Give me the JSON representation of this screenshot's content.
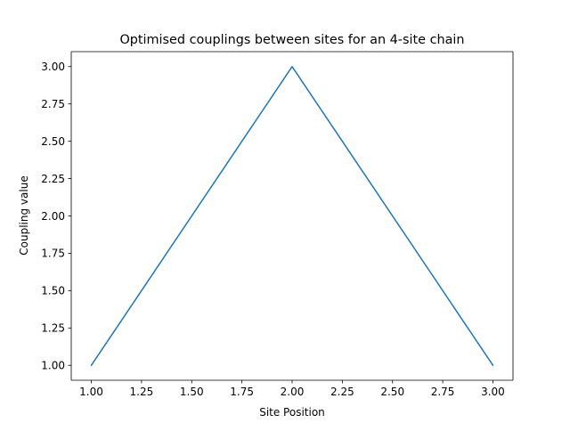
{
  "chart_data": {
    "type": "line",
    "title": "Optimised couplings between sites for an 4-site chain",
    "xlabel": "Site Position",
    "ylabel": "Coupling value",
    "x": [
      1.0,
      2.0,
      3.0
    ],
    "series": [
      {
        "values": [
          1.0,
          3.0,
          1.0
        ],
        "color": "#1f77b4"
      }
    ],
    "xlim": [
      0.9,
      3.1
    ],
    "ylim": [
      0.9,
      3.1
    ],
    "xticks": [
      "1.00",
      "1.25",
      "1.50",
      "1.75",
      "2.00",
      "2.25",
      "2.50",
      "2.75",
      "3.00"
    ],
    "yticks": [
      "1.00",
      "1.25",
      "1.50",
      "1.75",
      "2.00",
      "2.25",
      "2.50",
      "2.75",
      "3.00"
    ],
    "grid": false,
    "legend": false
  }
}
